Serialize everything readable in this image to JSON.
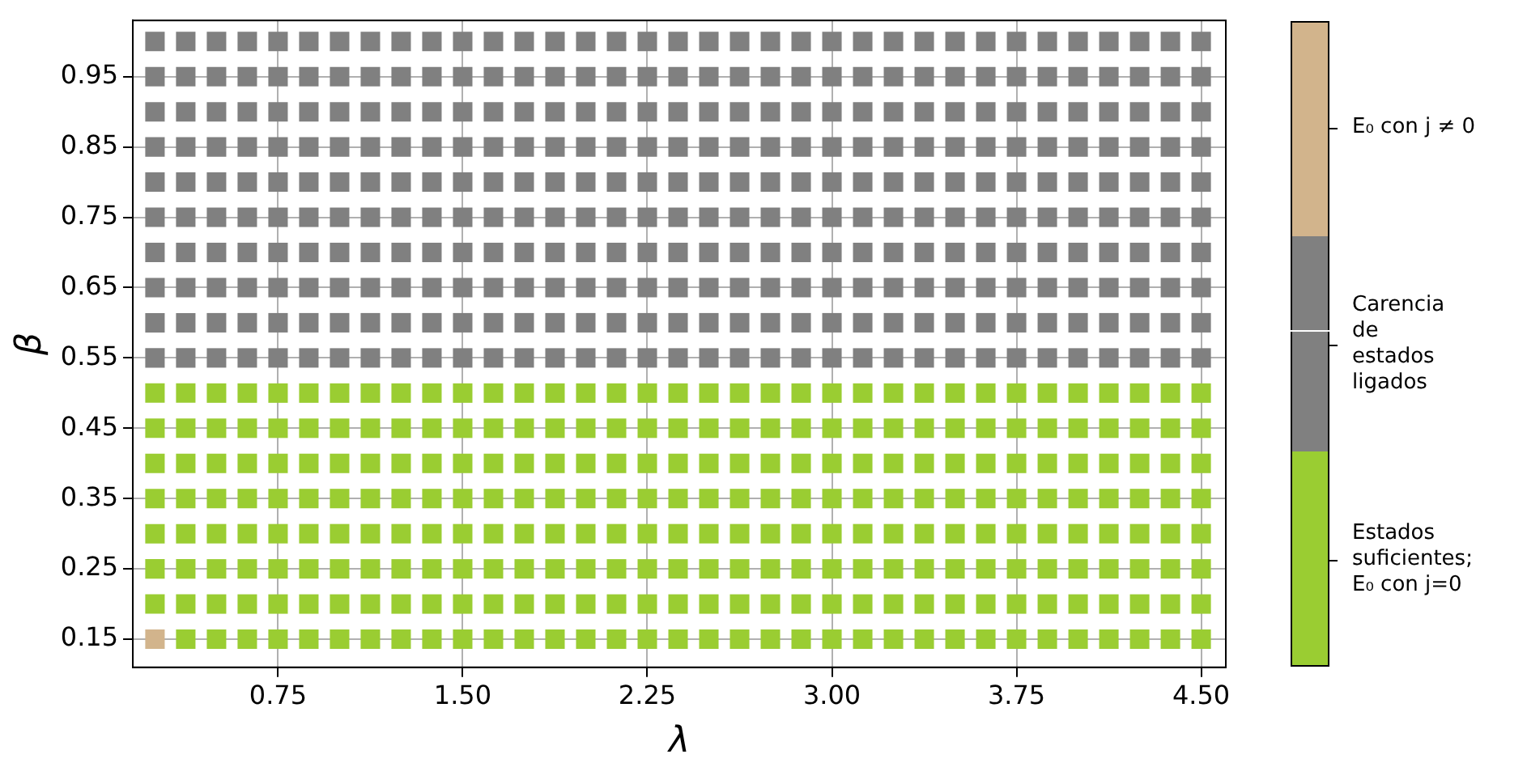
{
  "chart_data": {
    "type": "scatter",
    "xlabel": "λ",
    "ylabel": "β",
    "series": [
      {
        "name": "Estados\nsuficientes;\nE₀ con j=0",
        "color": "#9acd32",
        "x": [
          0.375,
          0.5,
          0.625,
          0.75,
          0.875,
          1,
          1.125,
          1.25,
          1.375,
          1.5,
          1.625,
          1.75,
          1.875,
          2,
          2.125,
          2.25,
          2.375,
          2.5,
          2.625,
          2.75,
          2.875,
          3,
          3.125,
          3.25,
          3.375,
          3.5,
          3.625,
          3.75,
          3.875,
          4,
          4.125,
          4.25,
          4.375,
          4.5,
          0.25,
          0.375,
          0.5,
          0.625,
          0.75,
          0.875,
          1,
          1.125,
          1.25,
          1.375,
          1.5,
          1.625,
          1.75,
          1.875,
          2,
          2.125,
          2.25,
          2.375,
          2.5,
          2.625,
          2.75,
          2.875,
          3,
          3.125,
          3.25,
          3.375,
          3.5,
          3.625,
          3.75,
          3.875,
          4,
          4.125,
          4.25,
          4.375,
          4.5,
          0.25,
          0.375,
          0.5,
          0.625,
          0.75,
          0.875,
          1,
          1.125,
          1.25,
          1.375,
          1.5,
          1.625,
          1.75,
          1.875,
          2,
          2.125,
          2.25,
          2.375,
          2.5,
          2.625,
          2.75,
          2.875,
          3,
          3.125,
          3.25,
          3.375,
          3.5,
          3.625,
          3.75,
          3.875,
          4,
          4.125,
          4.25,
          4.375,
          4.5,
          0.25,
          0.375,
          0.5,
          0.625,
          0.75,
          0.875,
          1,
          1.125,
          1.25,
          1.375,
          1.5,
          1.625,
          1.75,
          1.875,
          2,
          2.125,
          2.25,
          2.375,
          2.5,
          2.625,
          2.75,
          2.875,
          3,
          3.125,
          3.25,
          3.375,
          3.5,
          3.625,
          3.75,
          3.875,
          4,
          4.125,
          4.25,
          4.375,
          4.5,
          0.25,
          0.375,
          0.5,
          0.625,
          0.75,
          0.875,
          1,
          1.125,
          1.25,
          1.375,
          1.5,
          1.625,
          1.75,
          1.875,
          2,
          2.125,
          2.25,
          2.375,
          2.5,
          2.625,
          2.75,
          2.875,
          3,
          3.125,
          3.25,
          3.375,
          3.5,
          3.625,
          3.75,
          3.875,
          4,
          4.125,
          4.25,
          4.375,
          4.5,
          0.25,
          0.375,
          0.5,
          0.625,
          0.75,
          0.875,
          1,
          1.125,
          1.25,
          1.375,
          1.5,
          1.625,
          1.75,
          1.875,
          2,
          2.125,
          2.25,
          2.375,
          2.5,
          2.625,
          2.75,
          2.875,
          3,
          3.125,
          3.25,
          3.375,
          3.5,
          3.625,
          3.75,
          3.875,
          4,
          4.125,
          4.25,
          4.375,
          4.5,
          0.25,
          0.375,
          0.5,
          0.625,
          0.75,
          0.875,
          1,
          1.125,
          1.25,
          1.375,
          1.5,
          1.625,
          1.75,
          1.875,
          2,
          2.125,
          2.25,
          2.375,
          2.5,
          2.625,
          2.75,
          2.875,
          3,
          3.125,
          3.25,
          3.375,
          3.5,
          3.625,
          3.75,
          3.875,
          4,
          4.125,
          4.25,
          4.375,
          4.5,
          0.25,
          0.375,
          0.5,
          0.625,
          0.75,
          0.875,
          1,
          1.125,
          1.25,
          1.375,
          1.5,
          1.625,
          1.75,
          1.875,
          2,
          2.125,
          2.25,
          2.375,
          2.5,
          2.625,
          2.75,
          2.875,
          3,
          3.125,
          3.25,
          3.375,
          3.5,
          3.625,
          3.75,
          3.875,
          4,
          4.125,
          4.25,
          4.375,
          4.5
        ],
        "values": [
          0.15,
          0.15,
          0.15,
          0.15,
          0.15,
          0.15,
          0.15,
          0.15,
          0.15,
          0.15,
          0.15,
          0.15,
          0.15,
          0.15,
          0.15,
          0.15,
          0.15,
          0.15,
          0.15,
          0.15,
          0.15,
          0.15,
          0.15,
          0.15,
          0.15,
          0.15,
          0.15,
          0.15,
          0.15,
          0.15,
          0.15,
          0.15,
          0.15,
          0.15,
          0.2,
          0.2,
          0.2,
          0.2,
          0.2,
          0.2,
          0.2,
          0.2,
          0.2,
          0.2,
          0.2,
          0.2,
          0.2,
          0.2,
          0.2,
          0.2,
          0.2,
          0.2,
          0.2,
          0.2,
          0.2,
          0.2,
          0.2,
          0.2,
          0.2,
          0.2,
          0.2,
          0.2,
          0.2,
          0.2,
          0.2,
          0.2,
          0.2,
          0.2,
          0.2,
          0.25,
          0.25,
          0.25,
          0.25,
          0.25,
          0.25,
          0.25,
          0.25,
          0.25,
          0.25,
          0.25,
          0.25,
          0.25,
          0.25,
          0.25,
          0.25,
          0.25,
          0.25,
          0.25,
          0.25,
          0.25,
          0.25,
          0.25,
          0.25,
          0.25,
          0.25,
          0.25,
          0.25,
          0.25,
          0.25,
          0.25,
          0.25,
          0.25,
          0.25,
          0.25,
          0.3,
          0.3,
          0.3,
          0.3,
          0.3,
          0.3,
          0.3,
          0.3,
          0.3,
          0.3,
          0.3,
          0.3,
          0.3,
          0.3,
          0.3,
          0.3,
          0.3,
          0.3,
          0.3,
          0.3,
          0.3,
          0.3,
          0.3,
          0.3,
          0.3,
          0.3,
          0.3,
          0.3,
          0.3,
          0.3,
          0.3,
          0.3,
          0.3,
          0.3,
          0.3,
          0.35,
          0.35,
          0.35,
          0.35,
          0.35,
          0.35,
          0.35,
          0.35,
          0.35,
          0.35,
          0.35,
          0.35,
          0.35,
          0.35,
          0.35,
          0.35,
          0.35,
          0.35,
          0.35,
          0.35,
          0.35,
          0.35,
          0.35,
          0.35,
          0.35,
          0.35,
          0.35,
          0.35,
          0.35,
          0.35,
          0.35,
          0.35,
          0.35,
          0.35,
          0.35,
          0.4,
          0.4,
          0.4,
          0.4,
          0.4,
          0.4,
          0.4,
          0.4,
          0.4,
          0.4,
          0.4,
          0.4,
          0.4,
          0.4,
          0.4,
          0.4,
          0.4,
          0.4,
          0.4,
          0.4,
          0.4,
          0.4,
          0.4,
          0.4,
          0.4,
          0.4,
          0.4,
          0.4,
          0.4,
          0.4,
          0.4,
          0.4,
          0.4,
          0.4,
          0.4,
          0.45,
          0.45,
          0.45,
          0.45,
          0.45,
          0.45,
          0.45,
          0.45,
          0.45,
          0.45,
          0.45,
          0.45,
          0.45,
          0.45,
          0.45,
          0.45,
          0.45,
          0.45,
          0.45,
          0.45,
          0.45,
          0.45,
          0.45,
          0.45,
          0.45,
          0.45,
          0.45,
          0.45,
          0.45,
          0.45,
          0.45,
          0.45,
          0.45,
          0.45,
          0.45,
          0.5,
          0.5,
          0.5,
          0.5,
          0.5,
          0.5,
          0.5,
          0.5,
          0.5,
          0.5,
          0.5,
          0.5,
          0.5,
          0.5,
          0.5,
          0.5,
          0.5,
          0.5,
          0.5,
          0.5,
          0.5,
          0.5,
          0.5,
          0.5,
          0.5,
          0.5,
          0.5,
          0.5,
          0.5,
          0.5,
          0.5,
          0.5,
          0.5,
          0.5,
          0.5
        ]
      },
      {
        "name": "Carencia\nde\nestados\nligados",
        "color": "#808080",
        "x": [
          0.25,
          0.375,
          0.5,
          0.625,
          0.75,
          0.875,
          1,
          1.125,
          1.25,
          1.375,
          1.5,
          1.625,
          1.75,
          1.875,
          2,
          2.125,
          2.25,
          2.375,
          2.5,
          2.625,
          2.75,
          2.875,
          3,
          3.125,
          3.25,
          3.375,
          3.5,
          3.625,
          3.75,
          3.875,
          4,
          4.125,
          4.25,
          4.375,
          4.5,
          0.25,
          0.375,
          0.5,
          0.625,
          0.75,
          0.875,
          1,
          1.125,
          1.25,
          1.375,
          1.5,
          1.625,
          1.75,
          1.875,
          2,
          2.125,
          2.25,
          2.375,
          2.5,
          2.625,
          2.75,
          2.875,
          3,
          3.125,
          3.25,
          3.375,
          3.5,
          3.625,
          3.75,
          3.875,
          4,
          4.125,
          4.25,
          4.375,
          4.5,
          0.25,
          0.375,
          0.5,
          0.625,
          0.75,
          0.875,
          1,
          1.125,
          1.25,
          1.375,
          1.5,
          1.625,
          1.75,
          1.875,
          2,
          2.125,
          2.25,
          2.375,
          2.5,
          2.625,
          2.75,
          2.875,
          3,
          3.125,
          3.25,
          3.375,
          3.5,
          3.625,
          3.75,
          3.875,
          4,
          4.125,
          4.25,
          4.375,
          4.5,
          0.25,
          0.375,
          0.5,
          0.625,
          0.75,
          0.875,
          1,
          1.125,
          1.25,
          1.375,
          1.5,
          1.625,
          1.75,
          1.875,
          2,
          2.125,
          2.25,
          2.375,
          2.5,
          2.625,
          2.75,
          2.875,
          3,
          3.125,
          3.25,
          3.375,
          3.5,
          3.625,
          3.75,
          3.875,
          4,
          4.125,
          4.25,
          4.375,
          4.5,
          0.25,
          0.375,
          0.5,
          0.625,
          0.75,
          0.875,
          1,
          1.125,
          1.25,
          1.375,
          1.5,
          1.625,
          1.75,
          1.875,
          2,
          2.125,
          2.25,
          2.375,
          2.5,
          2.625,
          2.75,
          2.875,
          3,
          3.125,
          3.25,
          3.375,
          3.5,
          3.625,
          3.75,
          3.875,
          4,
          4.125,
          4.25,
          4.375,
          4.5,
          0.25,
          0.375,
          0.5,
          0.625,
          0.75,
          0.875,
          1,
          1.125,
          1.25,
          1.375,
          1.5,
          1.625,
          1.75,
          1.875,
          2,
          2.125,
          2.25,
          2.375,
          2.5,
          2.625,
          2.75,
          2.875,
          3,
          3.125,
          3.25,
          3.375,
          3.5,
          3.625,
          3.75,
          3.875,
          4,
          4.125,
          4.25,
          4.375,
          4.5,
          0.25,
          0.375,
          0.5,
          0.625,
          0.75,
          0.875,
          1,
          1.125,
          1.25,
          1.375,
          1.5,
          1.625,
          1.75,
          1.875,
          2,
          2.125,
          2.25,
          2.375,
          2.5,
          2.625,
          2.75,
          2.875,
          3,
          3.125,
          3.25,
          3.375,
          3.5,
          3.625,
          3.75,
          3.875,
          4,
          4.125,
          4.25,
          4.375,
          4.5,
          0.25,
          0.375,
          0.5,
          0.625,
          0.75,
          0.875,
          1,
          1.125,
          1.25,
          1.375,
          1.5,
          1.625,
          1.75,
          1.875,
          2,
          2.125,
          2.25,
          2.375,
          2.5,
          2.625,
          2.75,
          2.875,
          3,
          3.125,
          3.25,
          3.375,
          3.5,
          3.625,
          3.75,
          3.875,
          4,
          4.125,
          4.25,
          4.375,
          4.5,
          0.25,
          0.375,
          0.5,
          0.625,
          0.75,
          0.875,
          1,
          1.125,
          1.25,
          1.375,
          1.5,
          1.625,
          1.75,
          1.875,
          2,
          2.125,
          2.25,
          2.375,
          2.5,
          2.625,
          2.75,
          2.875,
          3,
          3.125,
          3.25,
          3.375,
          3.5,
          3.625,
          3.75,
          3.875,
          4,
          4.125,
          4.25,
          4.375,
          4.5,
          0.25,
          0.375,
          0.5,
          0.625,
          0.75,
          0.875,
          1,
          1.125,
          1.25,
          1.375,
          1.5,
          1.625,
          1.75,
          1.875,
          2,
          2.125,
          2.25,
          2.375,
          2.5,
          2.625,
          2.75,
          2.875,
          3,
          3.125,
          3.25,
          3.375,
          3.5,
          3.625,
          3.75,
          3.875,
          4,
          4.125,
          4.25,
          4.375,
          4.5
        ],
        "values": [
          0.55,
          0.55,
          0.55,
          0.55,
          0.55,
          0.55,
          0.55,
          0.55,
          0.55,
          0.55,
          0.55,
          0.55,
          0.55,
          0.55,
          0.55,
          0.55,
          0.55,
          0.55,
          0.55,
          0.55,
          0.55,
          0.55,
          0.55,
          0.55,
          0.55,
          0.55,
          0.55,
          0.55,
          0.55,
          0.55,
          0.55,
          0.55,
          0.55,
          0.55,
          0.55,
          0.6,
          0.6,
          0.6,
          0.6,
          0.6,
          0.6,
          0.6,
          0.6,
          0.6,
          0.6,
          0.6,
          0.6,
          0.6,
          0.6,
          0.6,
          0.6,
          0.6,
          0.6,
          0.6,
          0.6,
          0.6,
          0.6,
          0.6,
          0.6,
          0.6,
          0.6,
          0.6,
          0.6,
          0.6,
          0.6,
          0.6,
          0.6,
          0.6,
          0.6,
          0.6,
          0.65,
          0.65,
          0.65,
          0.65,
          0.65,
          0.65,
          0.65,
          0.65,
          0.65,
          0.65,
          0.65,
          0.65,
          0.65,
          0.65,
          0.65,
          0.65,
          0.65,
          0.65,
          0.65,
          0.65,
          0.65,
          0.65,
          0.65,
          0.65,
          0.65,
          0.65,
          0.65,
          0.65,
          0.65,
          0.65,
          0.65,
          0.65,
          0.65,
          0.65,
          0.65,
          0.7,
          0.7,
          0.7,
          0.7,
          0.7,
          0.7,
          0.7,
          0.7,
          0.7,
          0.7,
          0.7,
          0.7,
          0.7,
          0.7,
          0.7,
          0.7,
          0.7,
          0.7,
          0.7,
          0.7,
          0.7,
          0.7,
          0.7,
          0.7,
          0.7,
          0.7,
          0.7,
          0.7,
          0.7,
          0.7,
          0.7,
          0.7,
          0.7,
          0.7,
          0.7,
          0.75,
          0.75,
          0.75,
          0.75,
          0.75,
          0.75,
          0.75,
          0.75,
          0.75,
          0.75,
          0.75,
          0.75,
          0.75,
          0.75,
          0.75,
          0.75,
          0.75,
          0.75,
          0.75,
          0.75,
          0.75,
          0.75,
          0.75,
          0.75,
          0.75,
          0.75,
          0.75,
          0.75,
          0.75,
          0.75,
          0.75,
          0.75,
          0.75,
          0.75,
          0.75,
          0.8,
          0.8,
          0.8,
          0.8,
          0.8,
          0.8,
          0.8,
          0.8,
          0.8,
          0.8,
          0.8,
          0.8,
          0.8,
          0.8,
          0.8,
          0.8,
          0.8,
          0.8,
          0.8,
          0.8,
          0.8,
          0.8,
          0.8,
          0.8,
          0.8,
          0.8,
          0.8,
          0.8,
          0.8,
          0.8,
          0.8,
          0.8,
          0.8,
          0.8,
          0.8,
          0.85,
          0.85,
          0.85,
          0.85,
          0.85,
          0.85,
          0.85,
          0.85,
          0.85,
          0.85,
          0.85,
          0.85,
          0.85,
          0.85,
          0.85,
          0.85,
          0.85,
          0.85,
          0.85,
          0.85,
          0.85,
          0.85,
          0.85,
          0.85,
          0.85,
          0.85,
          0.85,
          0.85,
          0.85,
          0.85,
          0.85,
          0.85,
          0.85,
          0.85,
          0.85,
          0.9,
          0.9,
          0.9,
          0.9,
          0.9,
          0.9,
          0.9,
          0.9,
          0.9,
          0.9,
          0.9,
          0.9,
          0.9,
          0.9,
          0.9,
          0.9,
          0.9,
          0.9,
          0.9,
          0.9,
          0.9,
          0.9,
          0.9,
          0.9,
          0.9,
          0.9,
          0.9,
          0.9,
          0.9,
          0.9,
          0.9,
          0.9,
          0.9,
          0.9,
          0.9,
          0.95,
          0.95,
          0.95,
          0.95,
          0.95,
          0.95,
          0.95,
          0.95,
          0.95,
          0.95,
          0.95,
          0.95,
          0.95,
          0.95,
          0.95,
          0.95,
          0.95,
          0.95,
          0.95,
          0.95,
          0.95,
          0.95,
          0.95,
          0.95,
          0.95,
          0.95,
          0.95,
          0.95,
          0.95,
          0.95,
          0.95,
          0.95,
          0.95,
          0.95,
          0.95,
          1,
          1,
          1,
          1,
          1,
          1,
          1,
          1,
          1,
          1,
          1,
          1,
          1,
          1,
          1,
          1,
          1,
          1,
          1,
          1,
          1,
          1,
          1,
          1,
          1,
          1,
          1,
          1,
          1,
          1,
          1,
          1,
          1,
          1,
          1
        ]
      },
      {
        "name": "E₀ con j ≠ 0",
        "color": "#d2b48c",
        "x": [
          0.25
        ],
        "values": [
          0.15
        ]
      }
    ],
    "xlim": [
      0.16,
      4.6
    ],
    "ylim": [
      0.11,
      1.03
    ],
    "xticks": [
      0.75,
      {
        "value": 1.5,
        "label": "1.50"
      },
      2.25,
      {
        "value": 3,
        "label": "3.00"
      },
      3.75,
      {
        "value": 4.5,
        "label": "4.50"
      }
    ],
    "yticks": [
      0.15,
      0.25,
      0.35,
      0.45,
      0.55,
      0.65,
      0.75,
      0.85,
      0.95
    ],
    "grid": true,
    "marker": "square",
    "legend": "right"
  }
}
